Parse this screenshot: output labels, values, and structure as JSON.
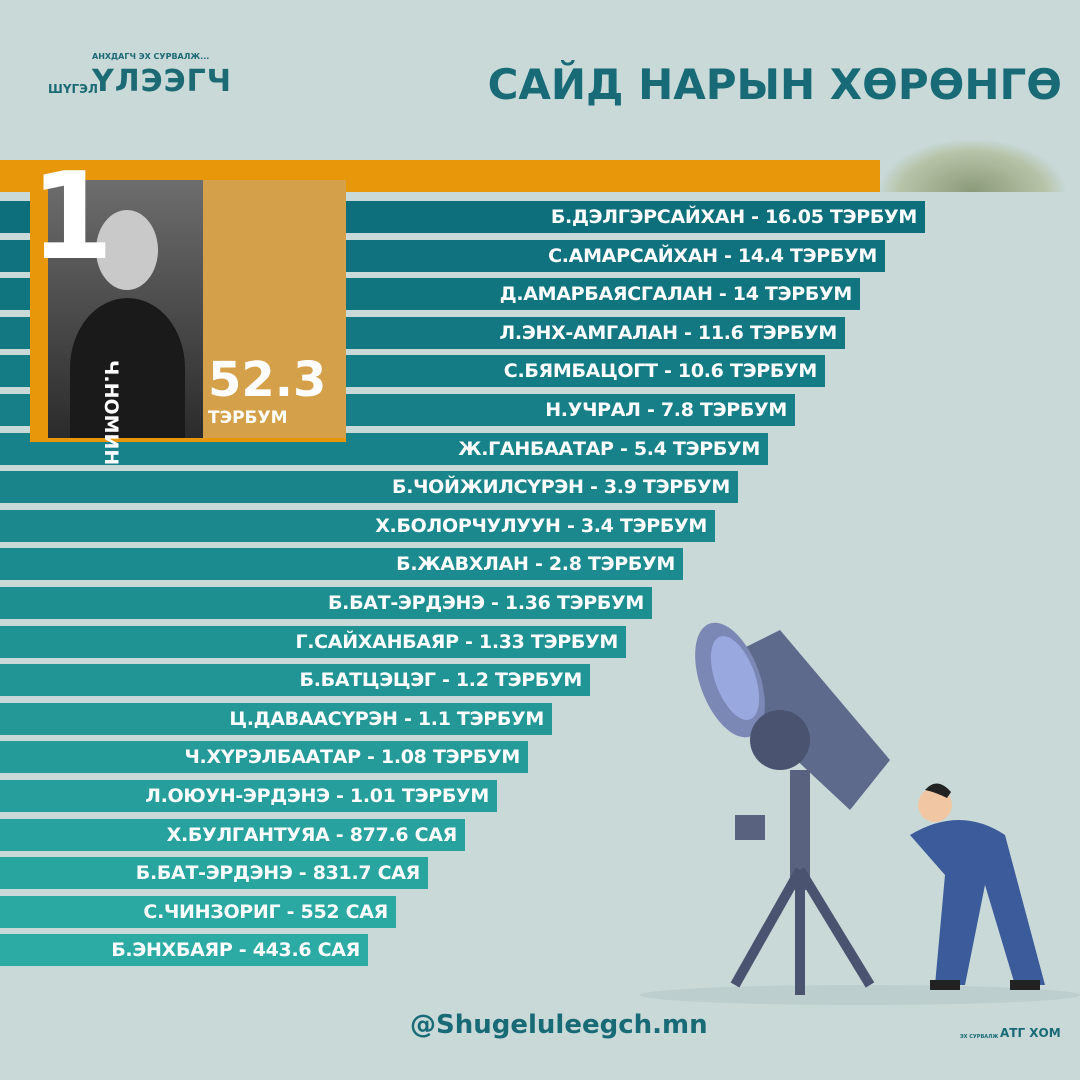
{
  "logo": {
    "tagline": "АНХДАГЧ ЭХ СУРВАЛЖ...",
    "small": "ШҮГЭЛ",
    "big": "ҮЛЭЭГЧ"
  },
  "title": "САЙД НАРЫН ХӨРӨНГӨ",
  "top": {
    "rank": "1",
    "name": "Ч.НОМИН",
    "amount": "52.3",
    "unit": "ТЭРБУМ"
  },
  "rows": [
    "Б.ДЭЛГЭРСАЙХАН - 16.05 ТЭРБУМ",
    "С.АМАРСАЙХАН - 14.4 ТЭРБУМ",
    "Д.АМАРБАЯСГАЛАН - 14 ТЭРБУМ",
    "Л.ЭНХ-АМГАЛАН - 11.6 ТЭРБУМ",
    "С.БЯМБАЦОГТ - 10.6 ТЭРБУМ",
    "Н.УЧРАЛ - 7.8 ТЭРБУМ",
    "Ж.ГАНБААТАР - 5.4 ТЭРБУМ",
    "Б.ЧОЙЖИЛСҮРЭН - 3.9 ТЭРБУМ",
    "Х.БОЛОРЧУЛУУН - 3.4 ТЭРБУМ",
    "Б.ЖАВХЛАН - 2.8 ТЭРБУМ",
    "Б.БАТ-ЭРДЭНЭ - 1.36 ТЭРБУМ",
    "Г.САЙХАНБАЯР - 1.33 ТЭРБУМ",
    "Б.БАТЦЭЦЭГ - 1.2 ТЭРБУМ",
    "Ц.ДАВААСҮРЭН - 1.1 ТЭРБУМ",
    "Ч.ХҮРЭЛБААТАР - 1.08 ТЭРБУМ",
    "Л.ОЮУН-ЭРДЭНЭ - 1.01 ТЭРБУМ",
    "Х.БУЛГАНТУЯА - 877.6 САЯ",
    "Б.БАТ-ЭРДЭНЭ - 831.7 САЯ",
    "С.ЧИНЗОРИГ - 552 САЯ",
    "Б.ЭНХБАЯР - 443.6 САЯ"
  ],
  "footer": {
    "handle": "@Shugeluleegch.mn",
    "source_small": "ЭХ СУРВАЛЖ",
    "source": "АТГ ХОМ"
  }
}
